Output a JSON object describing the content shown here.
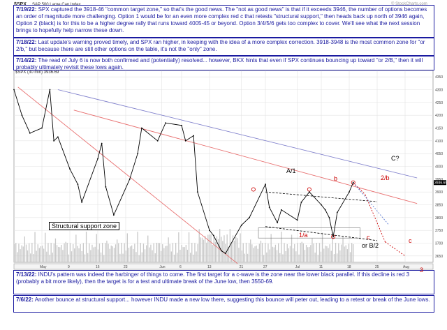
{
  "header": {
    "symbol": "$SPX",
    "subtitle": "S&P 500 Large Cap Index",
    "legend": "$SPX (30 min) 3936.69",
    "watermark": "© StockCharts.com"
  },
  "notes": [
    {
      "date": "7/19/22:",
      "text": "SPX captured the 3918-46 \"common target zone,\" so that's the good news.  The \"not as good news\" is that if it exceeds 3946, the number of options becomes an order of magnitude more challenging.  Option 1 would be for an even more complex red c that retests \"structural support,\" then heads back up north of 3946 again, Option 2 (black) is for this to be a higher degree rally that runs toward 4005-45 or beyond.  Option 3/4/5/6 gets too complex to cover.  We'll see what the next session brings to hopefully help narrow these down."
    },
    {
      "date": "7/18/22:",
      "text": "Last update's warning proved timely, and SPX ran higher, in keeping with the idea of a more complex correction.  3918-3948 is the most common zone for \"or 2/b,\" but because there are still other options on the table, it's not the \"only\" zone."
    },
    {
      "date": "7/14/22:",
      "text": "The read of July 6 is now both confirmed and (potentially) resolved... however, BKX hints that even if SPX continues bouncing up toward \"or 2/B,\" then it will probably ultimately revisit these lows again."
    },
    {
      "date": "7/13/22:",
      "text": "INDU's pattern was indeed the harbinger of things to come.  The first target for a c-wave is the zone near the lower black parallel.  If this decline is red 3 (probably a bit more likely), then the target is for a test and ultimate break of the June low, then 3550-69."
    },
    {
      "date": "7/6/22:",
      "text": "Another bounce at structural support... however INDU made a new low there, suggesting this bounce will peter out, leading to a retest or break of the June lows."
    }
  ],
  "annotations": {
    "structural": "Structural support zone",
    "a1": "A/1",
    "b": "b",
    "c2b": "2/b",
    "cq": "C?",
    "one_a": "1/a",
    "c_lower": "c",
    "or_b2": "or B/2",
    "c_proj": "c",
    "three": "3"
  },
  "colors": {
    "price": "#000000",
    "volume": "#c8c8c8",
    "note_text": "#1a1aa0",
    "red_wave": "#cc0000",
    "channel_blue": "#8080cc",
    "channel_red": "#e87070",
    "projection_blue": "#5a7ad2"
  },
  "chart_data": {
    "type": "line",
    "title": "$SPX",
    "subtitle": "S&P 500 Large Cap Index",
    "legend": [
      "$SPX (30 min) 3936.69"
    ],
    "xlabel": "",
    "ylabel": "",
    "x_ticks": [
      "May",
      "9",
      "16",
      "23",
      "Jun",
      "6",
      "13",
      "21",
      "27",
      "Jul",
      "11",
      "18",
      "25",
      "Aug"
    ],
    "y_ticks": [
      3650,
      3700,
      3750,
      3800,
      3850,
      3900,
      3950,
      4000,
      4050,
      4100,
      4150,
      4200,
      4250,
      4300,
      4350
    ],
    "ylim": [
      3625,
      4375
    ],
    "last_value": 3936.69,
    "series": [
      {
        "name": "$SPX (30 min)",
        "x": [
          "4/25",
          "4/27",
          "4/29",
          "5/2",
          "5/4",
          "5/5",
          "5/6",
          "5/9",
          "5/11",
          "5/12",
          "5/16",
          "5/17",
          "5/18",
          "5/20",
          "5/24",
          "5/26",
          "5/27",
          "5/31",
          "6/2",
          "6/6",
          "6/7",
          "6/9",
          "6/10",
          "6/13",
          "6/14",
          "6/16",
          "6/17",
          "6/21",
          "6/23",
          "6/27",
          "6/28",
          "6/30",
          "7/1",
          "7/5",
          "7/6",
          "7/8",
          "7/11",
          "7/12",
          "7/13",
          "7/14",
          "7/15",
          "7/18",
          "7/19"
        ],
        "values": [
          4300,
          4200,
          4130,
          4150,
          4300,
          4100,
          4115,
          3990,
          3930,
          3860,
          4030,
          4090,
          3920,
          3810,
          3950,
          4050,
          4150,
          4100,
          4170,
          4160,
          4100,
          4120,
          3900,
          3750,
          3730,
          3670,
          3660,
          3770,
          3800,
          3930,
          3840,
          3780,
          3830,
          3790,
          3860,
          3900,
          3850,
          3830,
          3800,
          3725,
          3820,
          3900,
          3937
        ]
      }
    ]
  }
}
